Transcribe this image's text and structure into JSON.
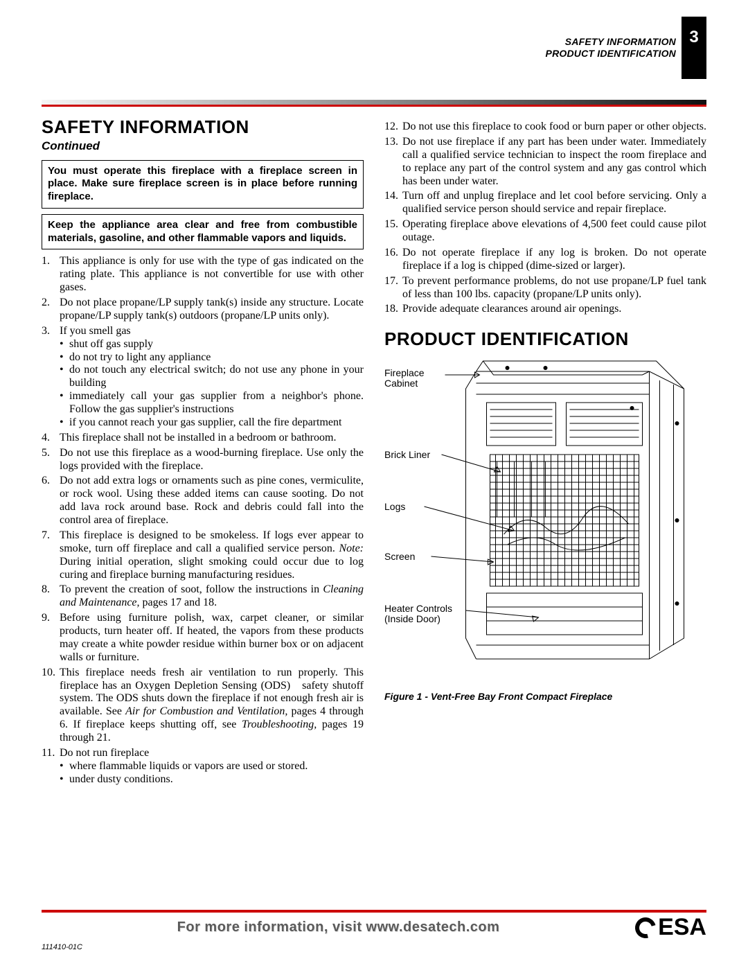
{
  "page_number": "3",
  "header_lines": [
    "SAFETY INFORMATION",
    "PRODUCT IDENTIFICATION"
  ],
  "accent_color": "#cc0000",
  "section1_title": "SAFETY INFORMATION",
  "continued_label": "Continued",
  "framed_notes": [
    "You must operate this fireplace with a fireplace screen in place. Make sure fireplace screen is in place before running fireplace.",
    "Keep the appliance area clear and free from combustible materials, gasoline, and other flammable vapors and liquids."
  ],
  "list_left": [
    {
      "text": "This appliance is only for use with the type of gas indicated on the rating plate. This appliance is not convertible for use with other gases."
    },
    {
      "text": "Do not place propane/LP supply tank(s) inside any structure. Locate propane/LP supply tank(s) outdoors (propane/LP units only)."
    },
    {
      "text": "If you smell gas",
      "sub": [
        "shut off gas supply",
        "do not try to light any appliance",
        "do not touch any electrical switch; do not use any phone in your building",
        "immediately call your gas supplier from a neighbor's phone. Follow the gas supplier's instructions",
        "if you cannot reach your gas supplier, call the fire department"
      ]
    },
    {
      "text": "This fireplace shall not be installed in a bedroom or bathroom."
    },
    {
      "text": "Do not use this fireplace as a wood-burning fireplace. Use only the logs provided with the fireplace."
    },
    {
      "text": "Do not add extra logs or ornaments such as pine cones, vermiculite, or rock wool. Using these added items can cause sooting. Do not add lava rock around base. Rock and debris could fall into the control area of fireplace."
    },
    {
      "html": "This fireplace is designed to be smokeless. If logs ever appear to smoke, turn off fireplace and call a qualified service person. <span class=\"note-label\">Note:</span> During initial operation, slight smoking could occur due to log curing and fireplace burning manufacturing residues."
    },
    {
      "html": "To prevent the creation of soot, follow the instructions in <span class=\"italic\">Cleaning and Maintenance,</span> pages 17 and 18."
    },
    {
      "text": "Before using furniture polish, wax, carpet cleaner, or similar products, turn heater off. If heated, the vapors from these products may create a white powder residue within burner box or on adjacent walls or furniture."
    },
    {
      "html": "This fireplace needs fresh air ventilation to run properly. This fireplace has an Oxygen Depletion Sensing (ODS)&nbsp;&nbsp; safety shutoff system. The ODS shuts down the fireplace if not enough fresh air is available. See <span class=\"italic\">Air for Combustion and Ventilation,</span> pages 4 through 6. If fireplace keeps shutting off, see <span class=\"italic\">Troubleshooting,</span> pages 19 through 21."
    },
    {
      "text": "Do not run fireplace",
      "sub": [
        "where flammable liquids or vapors are used or stored.",
        "under dusty conditions."
      ]
    }
  ],
  "list_right": [
    {
      "n": 12,
      "text": "Do not use this fireplace to cook food or burn paper or other objects."
    },
    {
      "n": 13,
      "text": "Do not use fireplace if any part has been under water. Immediately call a qualified service technician to inspect the room fireplace and to replace any part of the control system and any gas control which has been under water."
    },
    {
      "n": 14,
      "text": "Turn off and unplug fireplace and let cool before servicing. Only a qualified service person should service and repair fireplace."
    },
    {
      "n": 15,
      "text": "Operating fireplace above elevations of 4,500 feet could cause pilot outage."
    },
    {
      "n": 16,
      "text": "Do not operate fireplace if any log is broken. Do not operate fireplace if a log is chipped (dime-sized or larger)."
    },
    {
      "n": 17,
      "text": "To prevent performance problems, do not use propane/LP fuel tank of less than 100 lbs. capacity (propane/LP units only)."
    },
    {
      "n": 18,
      "text": "Provide adequate clearances around air openings."
    }
  ],
  "section2_title": "PRODUCT IDENTIFICATION",
  "callouts": {
    "cabinet": "Fireplace\nCabinet",
    "brick": "Brick Liner",
    "logs": "Logs",
    "screen": "Screen",
    "controls": "Heater Controls\n(Inside Door)"
  },
  "figure_caption": "Figure 1 - Vent-Free Bay Front Compact Fireplace",
  "footer_text": "For more information, visit www.desatech.com",
  "logo_text": "ESA",
  "doc_number": "111410-01C"
}
